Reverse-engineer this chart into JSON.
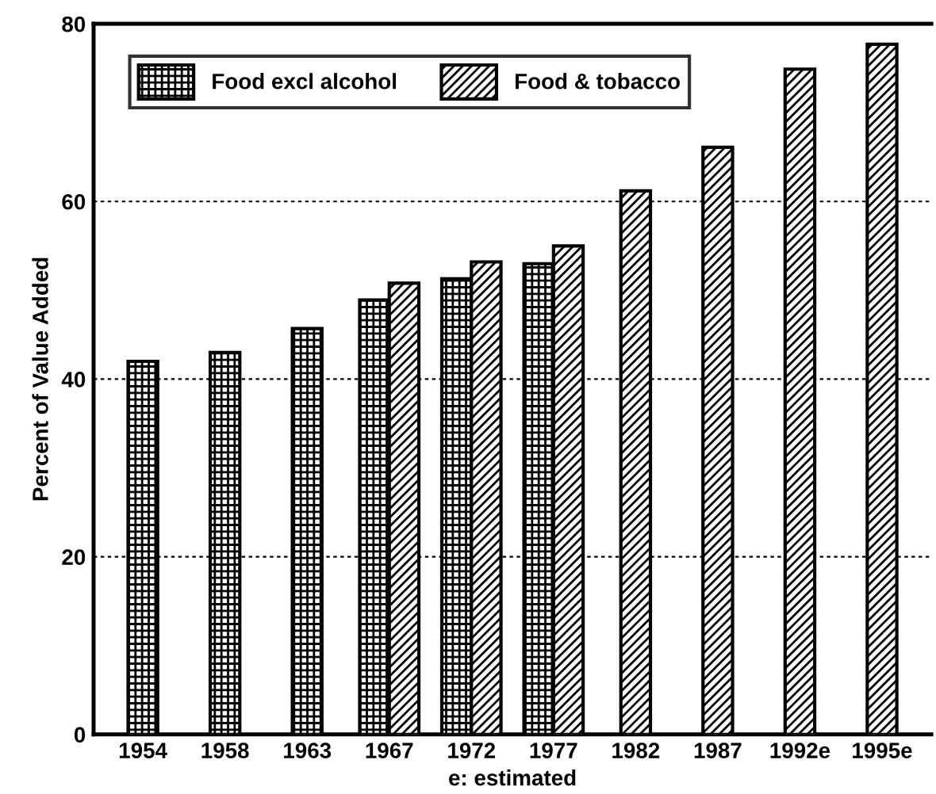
{
  "chart_data": {
    "type": "bar",
    "ylabel": "Percent of Value Added",
    "categories": [
      "1954",
      "1958",
      "1963",
      "1967",
      "1972",
      "1977",
      "1982",
      "1987",
      "1992e",
      "1995e"
    ],
    "series": [
      {
        "name": "Food excl alcohol",
        "color": "#000000",
        "values": [
          42,
          43,
          45.7,
          48.9,
          51.3,
          53,
          null,
          null,
          null,
          null
        ]
      },
      {
        "name": "Food & tobacco",
        "color": "#000000",
        "values": [
          null,
          null,
          null,
          50.8,
          53.2,
          55,
          61.2,
          66.1,
          74.9,
          77.7
        ]
      }
    ],
    "ylim": [
      0,
      80
    ],
    "yticks": [
      0,
      20,
      40,
      60,
      80
    ],
    "grid": "y",
    "legend": "top left",
    "annotations": [
      "e: estimated"
    ]
  }
}
